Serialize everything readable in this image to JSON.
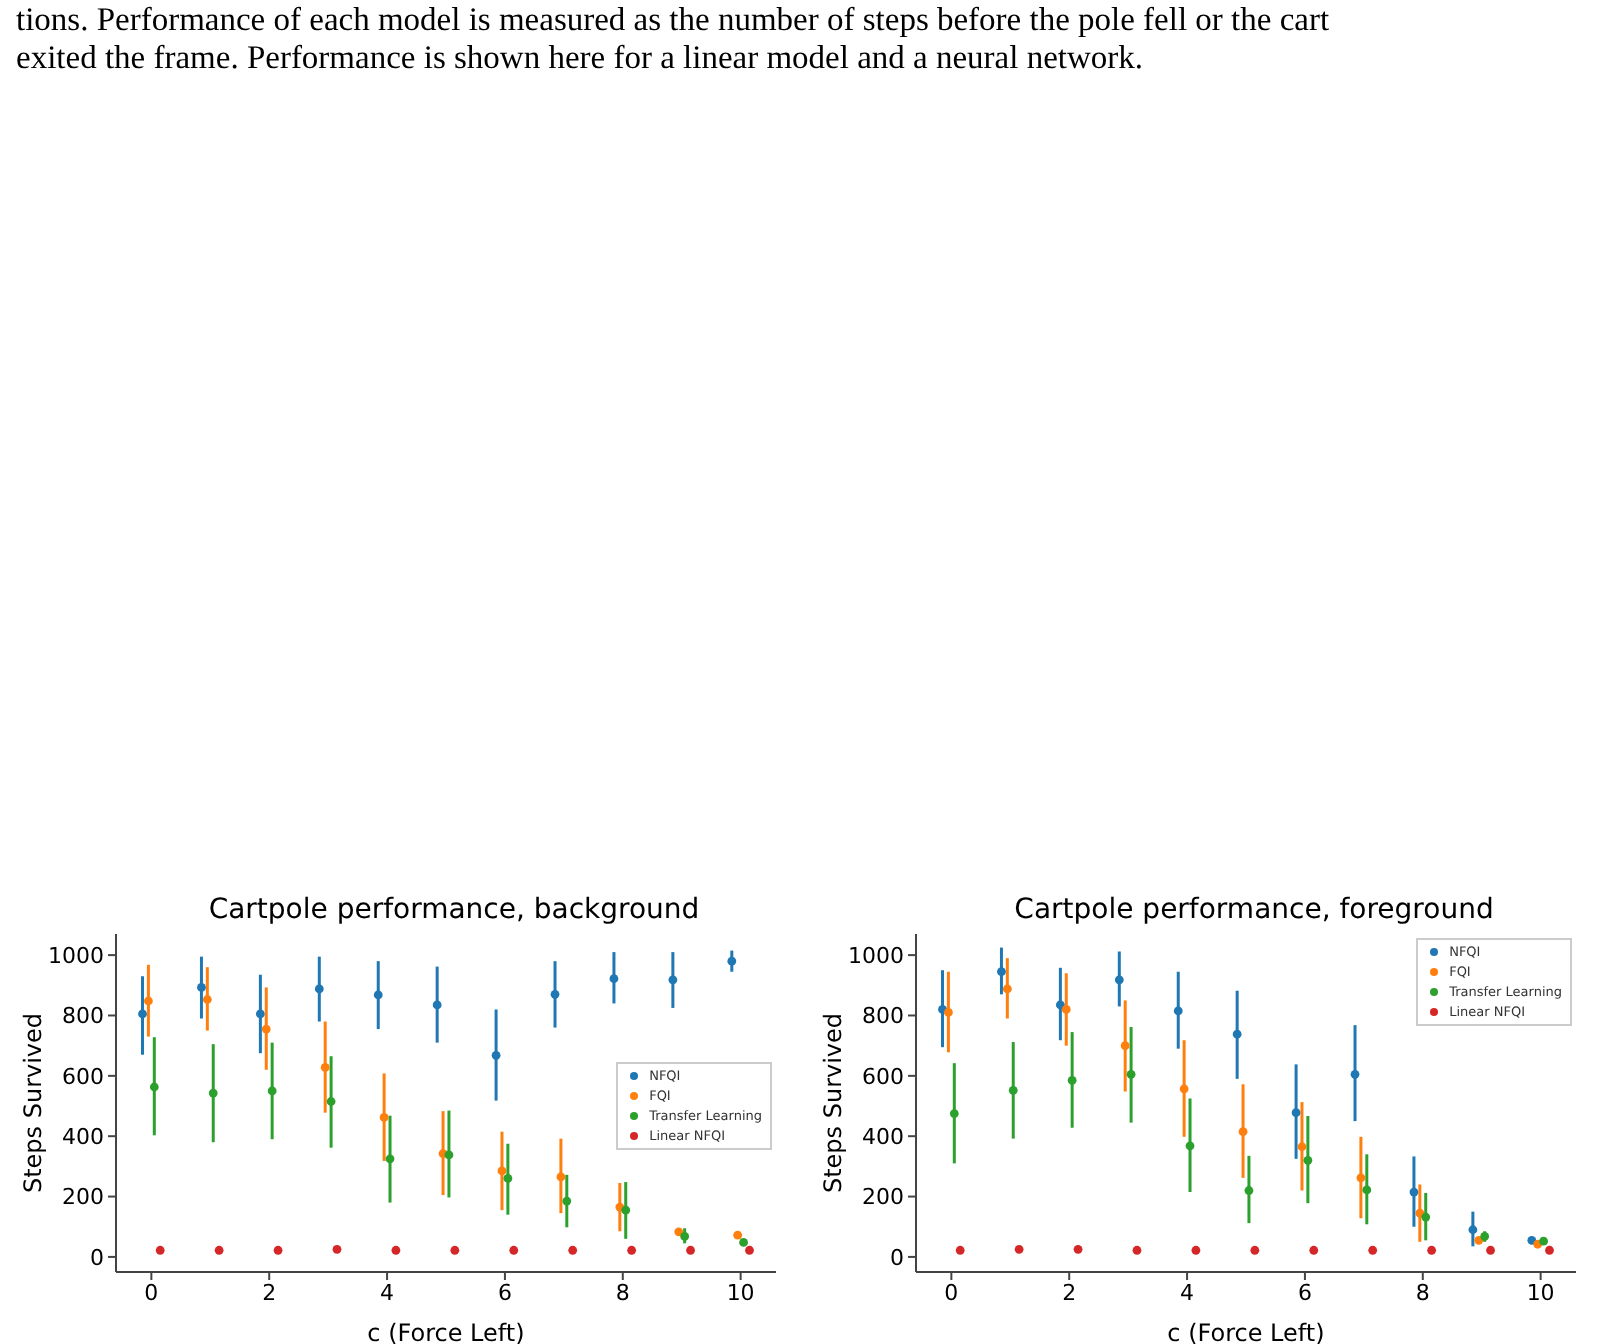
{
  "chart_data": [
    {
      "type": "scatter",
      "title": "Cartpole performance, background",
      "xlabel": "c (Force Left)",
      "ylabel": "Steps Survived",
      "annotations": [
        "tions. Performance of each model is measured as the number of steps before the pole fell or the cart",
        "exited the frame. Performance is shown here for a linear model and a neural network."
      ],
      "xlim": [
        -0.6,
        10.6
      ],
      "xticks": [
        0,
        2,
        4,
        6,
        8,
        10
      ],
      "ylim": [
        -50,
        1070
      ],
      "yticks": [
        0,
        200,
        400,
        600,
        800,
        1000
      ],
      "legend": "right",
      "grid": false,
      "marker": "circle",
      "series": [
        {
          "name": "NFQI",
          "color": "#1f77b4",
          "x": [
            -0.15,
            0.85,
            1.85,
            2.85,
            3.85,
            4.85,
            5.85,
            6.85,
            7.85,
            8.85,
            9.85
          ],
          "values": [
            805,
            893,
            805,
            888,
            868,
            835,
            668,
            870,
            922,
            918,
            980
          ],
          "errors": [
            [
              670,
              930
            ],
            [
              790,
              995
            ],
            [
              675,
              935
            ],
            [
              780,
              995
            ],
            [
              755,
              980
            ],
            [
              710,
              962
            ],
            [
              518,
              820
            ],
            [
              760,
              980
            ],
            [
              840,
              1010
            ],
            [
              825,
              1010
            ],
            [
              945,
              1015
            ]
          ]
        },
        {
          "name": "FQI",
          "color": "#ff7f0e",
          "x": [
            -0.05,
            0.95,
            1.95,
            2.95,
            3.95,
            4.95,
            5.95,
            6.95,
            7.95,
            8.95,
            9.95
          ],
          "values": [
            848,
            853,
            755,
            628,
            462,
            342,
            285,
            265,
            165,
            83,
            72
          ],
          "errors": [
            [
              730,
              968
            ],
            [
              750,
              960
            ],
            [
              620,
              893
            ],
            [
              478,
              780
            ],
            [
              318,
              608
            ],
            [
              205,
              483
            ],
            [
              155,
              415
            ],
            [
              145,
              392
            ],
            [
              85,
              245
            ],
            null,
            null
          ]
        },
        {
          "name": "Transfer Learning",
          "color": "#2ca02c",
          "x": [
            0.05,
            1.05,
            2.05,
            3.05,
            4.05,
            5.05,
            6.05,
            7.05,
            8.05,
            9.05,
            10.05
          ],
          "values": [
            563,
            543,
            550,
            515,
            325,
            338,
            260,
            185,
            155,
            68,
            48
          ],
          "errors": [
            [
              403,
              728
            ],
            [
              380,
              705
            ],
            [
              390,
              710
            ],
            [
              362,
              665
            ],
            [
              180,
              468
            ],
            [
              197,
              485
            ],
            [
              140,
              375
            ],
            [
              98,
              272
            ],
            [
              60,
              248
            ],
            [
              45,
              95
            ],
            null
          ]
        },
        {
          "name": "Linear NFQI",
          "color": "#d62728",
          "x": [
            0.15,
            1.15,
            2.15,
            3.15,
            4.15,
            5.15,
            6.15,
            7.15,
            8.15,
            9.15,
            10.15
          ],
          "values": [
            22,
            22,
            22,
            25,
            22,
            22,
            22,
            22,
            22,
            22,
            22
          ]
        }
      ]
    },
    {
      "type": "scatter",
      "title": "Cartpole performance, foreground",
      "xlabel": "c (Force Left)",
      "ylabel": "Steps Survived",
      "xlim": [
        -0.6,
        10.6
      ],
      "xticks": [
        0,
        2,
        4,
        6,
        8,
        10
      ],
      "ylim": [
        -50,
        1070
      ],
      "yticks": [
        0,
        200,
        400,
        600,
        800,
        1000
      ],
      "legend": "top right",
      "grid": false,
      "marker": "circle",
      "series": [
        {
          "name": "NFQI",
          "color": "#1f77b4",
          "x": [
            -0.15,
            0.85,
            1.85,
            2.85,
            3.85,
            4.85,
            5.85,
            6.85,
            7.85,
            8.85,
            9.85
          ],
          "values": [
            820,
            945,
            835,
            918,
            815,
            738,
            478,
            605,
            215,
            90,
            55
          ],
          "errors": [
            [
              695,
              950
            ],
            [
              870,
              1025
            ],
            [
              718,
              958
            ],
            [
              830,
              1012
            ],
            [
              690,
              945
            ],
            [
              590,
              882
            ],
            [
              325,
              638
            ],
            [
              450,
              768
            ],
            [
              100,
              333
            ],
            [
              35,
              150
            ],
            null
          ]
        },
        {
          "name": "FQI",
          "color": "#ff7f0e",
          "x": [
            -0.05,
            0.95,
            1.95,
            2.95,
            3.95,
            4.95,
            5.95,
            6.95,
            7.95,
            8.95,
            9.95
          ],
          "values": [
            810,
            888,
            820,
            700,
            557,
            415,
            365,
            262,
            145,
            55,
            42
          ],
          "errors": [
            [
              678,
              945
            ],
            [
              790,
              990
            ],
            [
              700,
              940
            ],
            [
              548,
              850
            ],
            [
              398,
              718
            ],
            [
              262,
              572
            ],
            [
              220,
              513
            ],
            [
              128,
              398
            ],
            [
              50,
              240
            ],
            null,
            null
          ]
        },
        {
          "name": "Transfer Learning",
          "color": "#2ca02c",
          "x": [
            0.05,
            1.05,
            2.05,
            3.05,
            4.05,
            5.05,
            6.05,
            7.05,
            8.05,
            9.05,
            10.05
          ],
          "values": [
            475,
            552,
            585,
            605,
            368,
            220,
            320,
            222,
            132,
            68,
            52
          ],
          "errors": [
            [
              310,
              642
            ],
            [
              392,
              712
            ],
            [
              428,
              745
            ],
            [
              445,
              762
            ],
            [
              215,
              525
            ],
            [
              112,
              335
            ],
            [
              178,
              467
            ],
            [
              108,
              340
            ],
            [
              55,
              212
            ],
            [
              50,
              85
            ],
            null
          ]
        },
        {
          "name": "Linear NFQI",
          "color": "#d62728",
          "x": [
            0.15,
            1.15,
            2.15,
            3.15,
            4.15,
            5.15,
            6.15,
            7.15,
            8.15,
            9.15,
            10.15
          ],
          "values": [
            22,
            25,
            25,
            22,
            22,
            22,
            22,
            22,
            22,
            22,
            22
          ]
        }
      ]
    }
  ]
}
